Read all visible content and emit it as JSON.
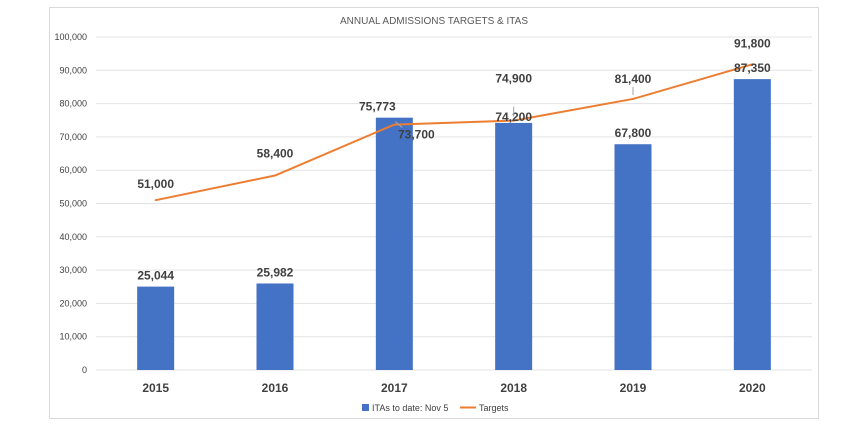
{
  "chart_data": {
    "type": "bar+line",
    "title": "ANNUAL ADMISSIONS TARGETS & ITAS",
    "categories": [
      "2015",
      "2016",
      "2017",
      "2018",
      "2019",
      "2020"
    ],
    "series": [
      {
        "name": "ITAs to date: Nov 5",
        "type": "bar",
        "color": "#4472c4",
        "values": [
          25044,
          25982,
          75773,
          74200,
          67800,
          87350
        ],
        "labels": [
          "25,044",
          "25,982",
          "75,773",
          "74,200",
          "67,800",
          "87,350"
        ]
      },
      {
        "name": "Targets",
        "type": "line",
        "color": "#ed7d31",
        "values": [
          51000,
          58400,
          73700,
          74900,
          81400,
          91800
        ],
        "labels": [
          "51,000",
          "58,400",
          "73,700",
          "74,900",
          "81,400",
          "91,800"
        ]
      }
    ],
    "ylim": [
      0,
      100000
    ],
    "yticks": [
      0,
      10000,
      20000,
      30000,
      40000,
      50000,
      60000,
      70000,
      80000,
      90000,
      100000
    ],
    "ytick_labels": [
      "0",
      "10,000",
      "20,000",
      "30,000",
      "40,000",
      "50,000",
      "60,000",
      "70,000",
      "80,000",
      "90,000",
      "100,000"
    ],
    "grid": true,
    "legend": "bottom"
  }
}
